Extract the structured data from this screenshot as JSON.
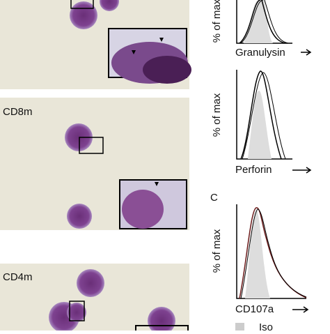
{
  "micrographs": [
    {
      "label": "CD8m"
    },
    {
      "label": "CD4m"
    }
  ],
  "histograms": [
    {
      "y_label": "% of max",
      "x_label": "Granulysin"
    },
    {
      "y_label": "% of max",
      "x_label": "Perforin"
    },
    {
      "panel": "C",
      "y_label": "% of max",
      "x_label": "CD107a"
    }
  ],
  "legend": {
    "label": "Iso"
  }
}
